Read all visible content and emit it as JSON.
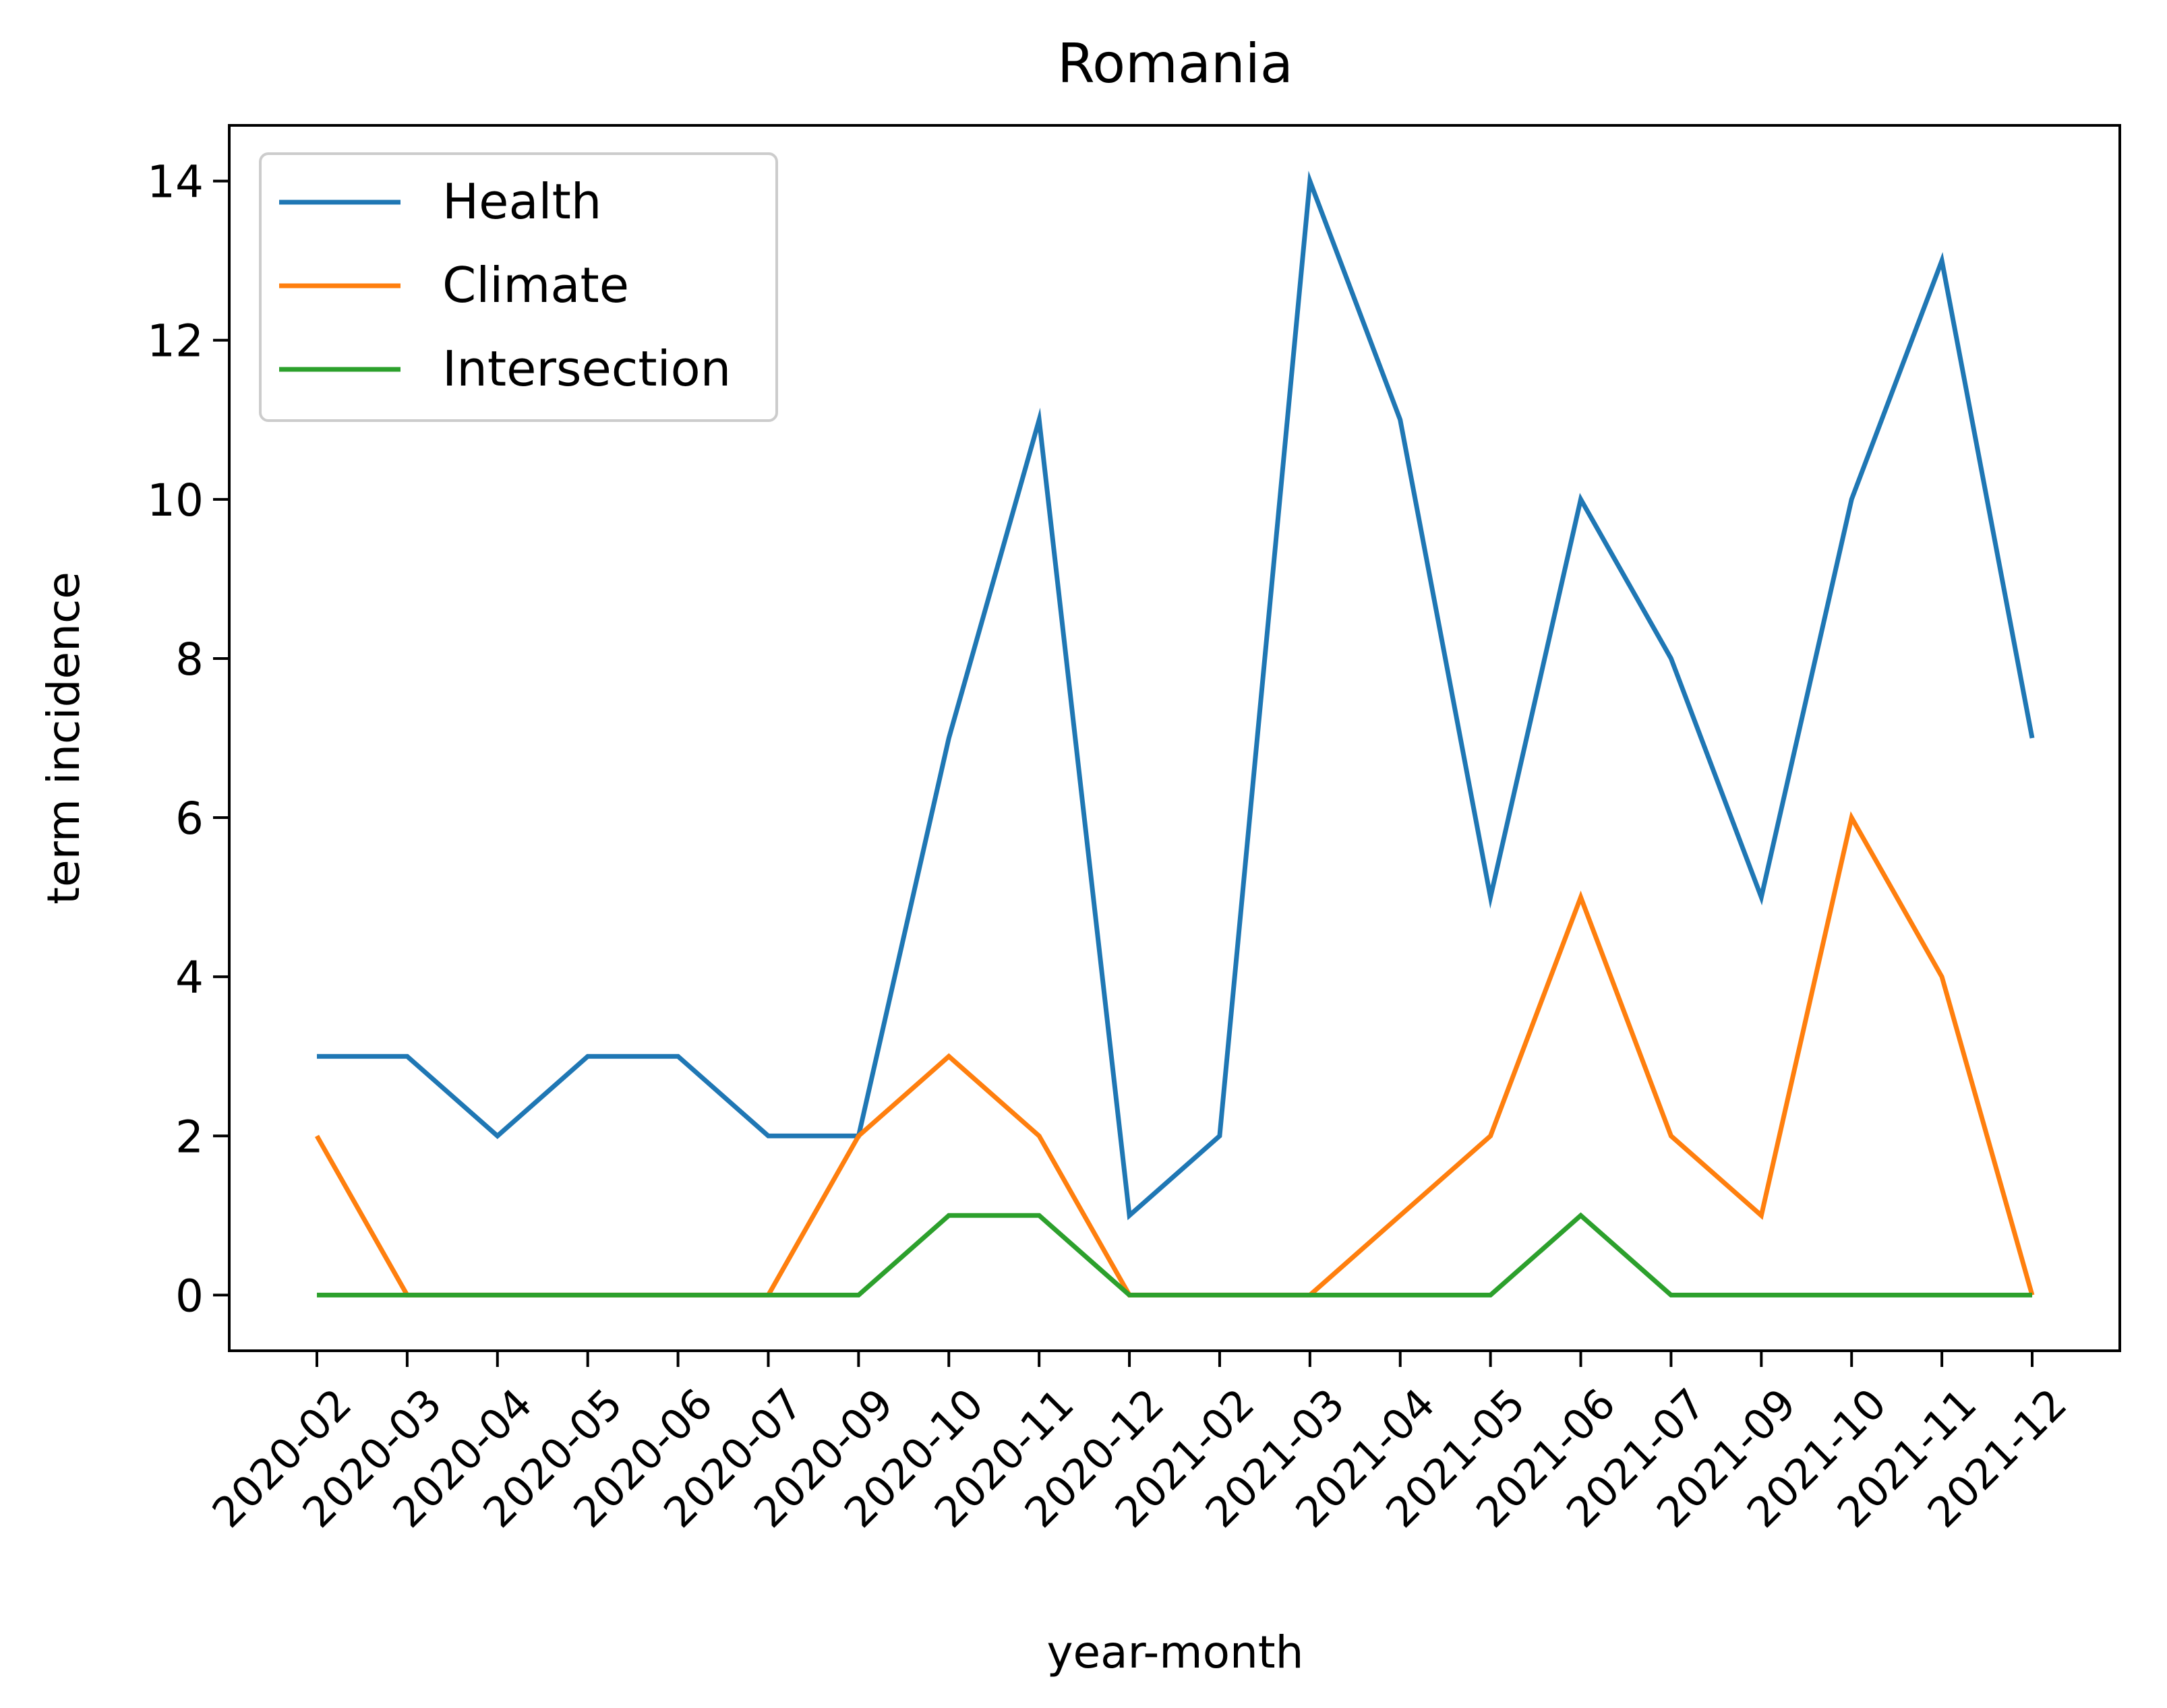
{
  "chart_data": {
    "type": "line",
    "title": "Romania",
    "xlabel": "year-month",
    "ylabel": "term incidence",
    "categories": [
      "2020-02",
      "2020-03",
      "2020-04",
      "2020-05",
      "2020-06",
      "2020-07",
      "2020-09",
      "2020-10",
      "2020-11",
      "2020-12",
      "2021-02",
      "2021-03",
      "2021-04",
      "2021-05",
      "2021-06",
      "2021-07",
      "2021-09",
      "2021-10",
      "2021-11",
      "2021-12"
    ],
    "series": [
      {
        "name": "Health",
        "color": "#1f77b4",
        "values": [
          3,
          3,
          2,
          3,
          3,
          2,
          2,
          7,
          11,
          1,
          2,
          14,
          11,
          5,
          10,
          8,
          5,
          10,
          13,
          7
        ]
      },
      {
        "name": "Climate",
        "color": "#ff7f0e",
        "values": [
          2,
          0,
          0,
          0,
          0,
          0,
          2,
          3,
          2,
          0,
          0,
          0,
          1,
          2,
          5,
          2,
          1,
          6,
          4,
          0
        ]
      },
      {
        "name": "Intersection",
        "color": "#2ca02c",
        "values": [
          0,
          0,
          0,
          0,
          0,
          0,
          0,
          1,
          1,
          0,
          0,
          0,
          0,
          0,
          1,
          0,
          0,
          0,
          0,
          0
        ]
      }
    ],
    "yticks": [
      0,
      2,
      4,
      6,
      8,
      10,
      12,
      14
    ],
    "ylim": [
      -0.7,
      14.7
    ],
    "grid": false,
    "legend": "top-left"
  }
}
